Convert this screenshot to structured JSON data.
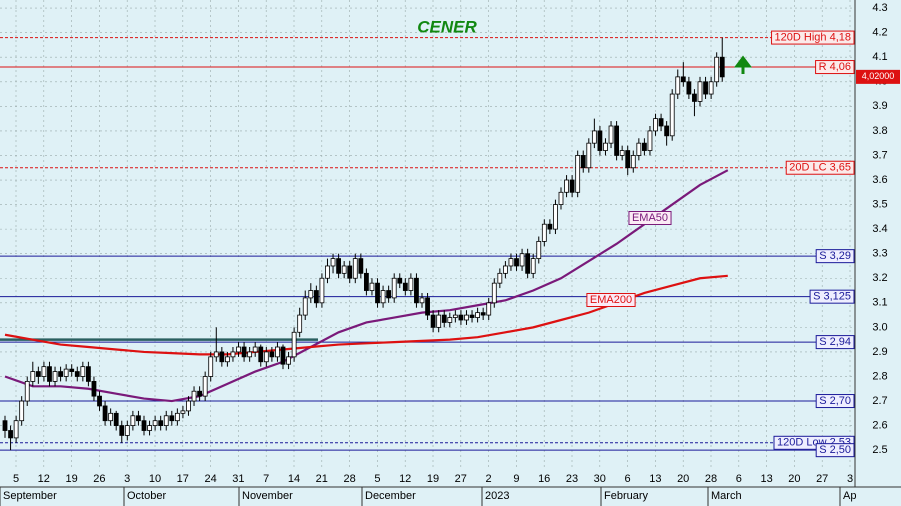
{
  "chart_data": {
    "type": "candlestick",
    "title": "CENER",
    "ylim": [
      2.35,
      4.333
    ],
    "yticks": [
      2.5,
      2.6,
      2.7,
      2.8,
      2.9,
      {
        "value": 3,
        "label": "3.0"
      },
      3.1,
      3.2,
      3.3,
      3.4,
      3.5,
      3.6,
      3.7,
      3.8,
      3.9,
      {
        "value": 4,
        "label": "4.0"
      },
      4.1,
      4.2,
      4.3
    ],
    "grid": true,
    "week_labels": [
      "5",
      "12",
      "19",
      "26",
      "3",
      "10",
      "17",
      "24",
      "31",
      "7",
      "14",
      "21",
      "28",
      "5",
      "12",
      "19",
      "27",
      "2",
      "9",
      "16",
      "23",
      "30",
      "6",
      "13",
      "20",
      "28",
      "6",
      "13",
      "20",
      "27",
      "3"
    ],
    "month_labels": [
      "September",
      "October",
      "November",
      "December",
      "2023",
      "February",
      "March",
      "Ap"
    ],
    "candles": [
      [
        2.62,
        2.64,
        2.55,
        2.58
      ],
      [
        2.58,
        2.6,
        2.5,
        2.55
      ],
      [
        2.55,
        2.64,
        2.53,
        2.62
      ],
      [
        2.62,
        2.72,
        2.6,
        2.7
      ],
      [
        2.7,
        2.8,
        2.68,
        2.78
      ],
      [
        2.78,
        2.86,
        2.76,
        2.82
      ],
      [
        2.82,
        2.84,
        2.77,
        2.8
      ],
      [
        2.8,
        2.86,
        2.78,
        2.84
      ],
      [
        2.84,
        2.86,
        2.76,
        2.78
      ],
      [
        2.78,
        2.84,
        2.76,
        2.82
      ],
      [
        2.82,
        2.84,
        2.78,
        2.8
      ],
      [
        2.8,
        2.85,
        2.78,
        2.83
      ],
      [
        2.83,
        2.85,
        2.8,
        2.82
      ],
      [
        2.82,
        2.84,
        2.78,
        2.8
      ],
      [
        2.8,
        2.86,
        2.78,
        2.84
      ],
      [
        2.84,
        2.86,
        2.76,
        2.78
      ],
      [
        2.78,
        2.8,
        2.7,
        2.72
      ],
      [
        2.72,
        2.74,
        2.66,
        2.68
      ],
      [
        2.68,
        2.7,
        2.6,
        2.62
      ],
      [
        2.62,
        2.67,
        2.6,
        2.65
      ],
      [
        2.65,
        2.66,
        2.58,
        2.6
      ],
      [
        2.6,
        2.62,
        2.53,
        2.56
      ],
      [
        2.56,
        2.62,
        2.54,
        2.6
      ],
      [
        2.6,
        2.66,
        2.58,
        2.64
      ],
      [
        2.64,
        2.66,
        2.6,
        2.62
      ],
      [
        2.62,
        2.64,
        2.56,
        2.58
      ],
      [
        2.58,
        2.62,
        2.56,
        2.6
      ],
      [
        2.6,
        2.64,
        2.58,
        2.62
      ],
      [
        2.62,
        2.64,
        2.58,
        2.6
      ],
      [
        2.6,
        2.66,
        2.58,
        2.64
      ],
      [
        2.64,
        2.66,
        2.6,
        2.62
      ],
      [
        2.62,
        2.67,
        2.6,
        2.65
      ],
      [
        2.65,
        2.68,
        2.63,
        2.66
      ],
      [
        2.66,
        2.72,
        2.64,
        2.7
      ],
      [
        2.7,
        2.76,
        2.68,
        2.74
      ],
      [
        2.74,
        2.76,
        2.7,
        2.72
      ],
      [
        2.72,
        2.82,
        2.7,
        2.8
      ],
      [
        2.8,
        2.9,
        2.78,
        2.88
      ],
      [
        2.88,
        3.0,
        2.86,
        2.9
      ],
      [
        2.9,
        2.92,
        2.84,
        2.86
      ],
      [
        2.86,
        2.9,
        2.84,
        2.88
      ],
      [
        2.88,
        2.92,
        2.86,
        2.9
      ],
      [
        2.9,
        2.94,
        2.88,
        2.92
      ],
      [
        2.92,
        2.94,
        2.86,
        2.88
      ],
      [
        2.88,
        2.92,
        2.86,
        2.9
      ],
      [
        2.9,
        2.94,
        2.88,
        2.92
      ],
      [
        2.92,
        2.93,
        2.84,
        2.86
      ],
      [
        2.86,
        2.92,
        2.84,
        2.9
      ],
      [
        2.9,
        2.92,
        2.86,
        2.88
      ],
      [
        2.88,
        2.94,
        2.86,
        2.92
      ],
      [
        2.92,
        2.93,
        2.83,
        2.85
      ],
      [
        2.85,
        2.9,
        2.83,
        2.88
      ],
      [
        2.88,
        3.0,
        2.86,
        2.98
      ],
      [
        2.98,
        3.08,
        2.96,
        3.05
      ],
      [
        3.05,
        3.15,
        3.03,
        3.12
      ],
      [
        3.12,
        3.18,
        3.1,
        3.15
      ],
      [
        3.15,
        3.17,
        3.08,
        3.1
      ],
      [
        3.1,
        3.22,
        3.08,
        3.2
      ],
      [
        3.2,
        3.28,
        3.18,
        3.25
      ],
      [
        3.25,
        3.3,
        3.22,
        3.28
      ],
      [
        3.28,
        3.3,
        3.2,
        3.22
      ],
      [
        3.22,
        3.27,
        3.2,
        3.25
      ],
      [
        3.25,
        3.27,
        3.18,
        3.2
      ],
      [
        3.2,
        3.3,
        3.18,
        3.28
      ],
      [
        3.28,
        3.3,
        3.2,
        3.22
      ],
      [
        3.22,
        3.24,
        3.13,
        3.15
      ],
      [
        3.15,
        3.2,
        3.13,
        3.18
      ],
      [
        3.18,
        3.2,
        3.08,
        3.1
      ],
      [
        3.1,
        3.17,
        3.08,
        3.15
      ],
      [
        3.15,
        3.17,
        3.1,
        3.12
      ],
      [
        3.12,
        3.22,
        3.1,
        3.2
      ],
      [
        3.2,
        3.22,
        3.16,
        3.18
      ],
      [
        3.18,
        3.2,
        3.13,
        3.15
      ],
      [
        3.15,
        3.22,
        3.13,
        3.2
      ],
      [
        3.2,
        3.22,
        3.08,
        3.1
      ],
      [
        3.1,
        3.14,
        3.08,
        3.12
      ],
      [
        3.12,
        3.14,
        3.03,
        3.05
      ],
      [
        3.05,
        3.07,
        2.98,
        3.0
      ],
      [
        3.0,
        3.07,
        2.98,
        3.05
      ],
      [
        3.05,
        3.07,
        3.0,
        3.02
      ],
      [
        3.02,
        3.06,
        3.0,
        3.04
      ],
      [
        3.04,
        3.07,
        3.02,
        3.05
      ],
      [
        3.05,
        3.07,
        3.01,
        3.03
      ],
      [
        3.03,
        3.07,
        3.01,
        3.05
      ],
      [
        3.05,
        3.07,
        3.02,
        3.04
      ],
      [
        3.04,
        3.08,
        3.02,
        3.06
      ],
      [
        3.06,
        3.08,
        3.03,
        3.05
      ],
      [
        3.05,
        3.12,
        3.03,
        3.1
      ],
      [
        3.1,
        3.2,
        3.08,
        3.18
      ],
      [
        3.18,
        3.24,
        3.16,
        3.22
      ],
      [
        3.22,
        3.27,
        3.2,
        3.25
      ],
      [
        3.25,
        3.3,
        3.23,
        3.28
      ],
      [
        3.28,
        3.3,
        3.23,
        3.25
      ],
      [
        3.25,
        3.32,
        3.23,
        3.3
      ],
      [
        3.3,
        3.32,
        3.2,
        3.22
      ],
      [
        3.22,
        3.3,
        3.2,
        3.28
      ],
      [
        3.28,
        3.37,
        3.26,
        3.35
      ],
      [
        3.35,
        3.44,
        3.33,
        3.42
      ],
      [
        3.42,
        3.44,
        3.38,
        3.4
      ],
      [
        3.4,
        3.52,
        3.38,
        3.5
      ],
      [
        3.5,
        3.57,
        3.48,
        3.55
      ],
      [
        3.55,
        3.62,
        3.53,
        3.6
      ],
      [
        3.6,
        3.62,
        3.53,
        3.55
      ],
      [
        3.55,
        3.72,
        3.53,
        3.7
      ],
      [
        3.7,
        3.72,
        3.63,
        3.65
      ],
      [
        3.65,
        3.77,
        3.63,
        3.75
      ],
      [
        3.75,
        3.85,
        3.73,
        3.8
      ],
      [
        3.8,
        3.82,
        3.7,
        3.72
      ],
      [
        3.72,
        3.77,
        3.7,
        3.75
      ],
      [
        3.75,
        3.84,
        3.73,
        3.82
      ],
      [
        3.82,
        3.84,
        3.68,
        3.7
      ],
      [
        3.7,
        3.74,
        3.68,
        3.72
      ],
      [
        3.72,
        3.74,
        3.62,
        3.65
      ],
      [
        3.65,
        3.72,
        3.63,
        3.7
      ],
      [
        3.7,
        3.77,
        3.68,
        3.75
      ],
      [
        3.75,
        3.77,
        3.7,
        3.72
      ],
      [
        3.72,
        3.82,
        3.7,
        3.8
      ],
      [
        3.8,
        3.87,
        3.78,
        3.85
      ],
      [
        3.85,
        3.87,
        3.8,
        3.82
      ],
      [
        3.82,
        3.84,
        3.74,
        3.78
      ],
      [
        3.78,
        3.97,
        3.76,
        3.95
      ],
      [
        3.95,
        4.05,
        3.93,
        4.02
      ],
      [
        4.02,
        4.08,
        3.98,
        4.0
      ],
      [
        4.0,
        4.02,
        3.93,
        3.95
      ],
      [
        3.95,
        3.97,
        3.86,
        3.92
      ],
      [
        3.92,
        4.02,
        3.9,
        4.0
      ],
      [
        4.0,
        4.02,
        3.93,
        3.95
      ],
      [
        3.95,
        4.02,
        3.93,
        4.0
      ],
      [
        4.0,
        4.12,
        3.98,
        4.1
      ],
      [
        4.1,
        4.18,
        4.0,
        4.02
      ]
    ],
    "series": [
      {
        "name": "EMA50",
        "color": "#7a1a7a",
        "values": [
          2.8,
          2.76,
          2.76,
          2.75,
          2.73,
          2.71,
          2.7,
          2.72,
          2.77,
          2.82,
          2.86,
          2.92,
          2.98,
          3.02,
          3.04,
          3.06,
          3.07,
          3.09,
          3.11,
          3.15,
          3.2,
          3.27,
          3.34,
          3.42,
          3.5,
          3.58,
          3.64
        ]
      },
      {
        "name": "EMA200",
        "color": "#dd1111",
        "values": [
          2.97,
          2.95,
          2.93,
          2.92,
          2.91,
          2.9,
          2.895,
          2.89,
          2.89,
          2.9,
          2.91,
          2.92,
          2.93,
          2.935,
          2.94,
          2.945,
          2.95,
          2.96,
          2.98,
          3.0,
          3.03,
          3.06,
          3.1,
          3.14,
          3.17,
          3.2,
          3.21
        ]
      }
    ],
    "levels": [
      {
        "label": "120D High 4,18",
        "value": 4.18,
        "color": "#dd1111",
        "dashed": true
      },
      {
        "label": "R 4,06",
        "value": 4.06,
        "color": "#dd1111",
        "dashed": false
      },
      {
        "label": "20D LC 3,65",
        "value": 3.65,
        "color": "#dd1111",
        "dashed": true
      },
      {
        "label": "S 3,29",
        "value": 3.29,
        "color": "#1a1a99",
        "dashed": false
      },
      {
        "label": "S 3,125",
        "value": 3.125,
        "color": "#1a1a99",
        "dashed": false
      },
      {
        "label": "S 2,94",
        "value": 2.94,
        "color": "#1a1a99",
        "dashed": false
      },
      {
        "label": "S 2,70",
        "value": 2.7,
        "color": "#1a1a99",
        "dashed": false
      },
      {
        "label": "120D Low 2,53",
        "value": 2.53,
        "color": "#1a1a99",
        "dashed": true
      },
      {
        "label": "S 2,50",
        "value": 2.5,
        "color": "#1a1a99",
        "dashed": false
      }
    ],
    "zone_line": {
      "value": 2.95,
      "color": "#2a6060"
    },
    "last_price": {
      "value": 4.02,
      "label": "4,02000",
      "color": "#dd1111"
    }
  }
}
